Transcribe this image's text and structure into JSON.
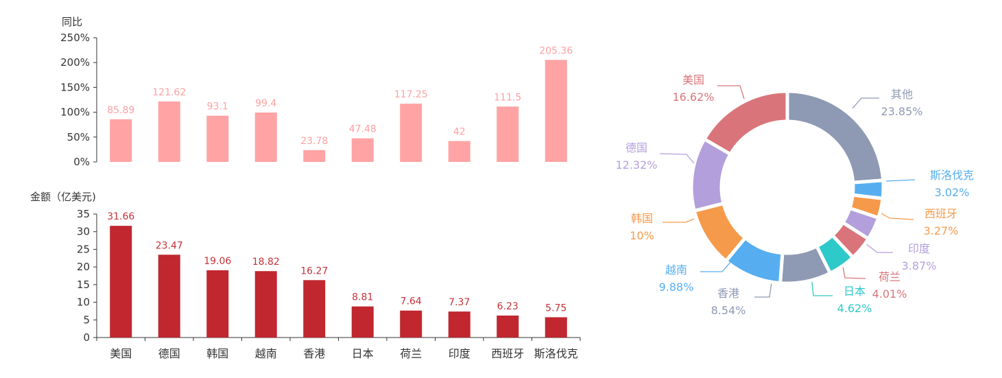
{
  "chart_data": [
    {
      "type": "bar",
      "ylabel": "同比",
      "categories": [
        "美国",
        "德国",
        "韩国",
        "越南",
        "香港",
        "日本",
        "荷兰",
        "印度",
        "西班牙",
        "斯洛伐克"
      ],
      "values": [
        85.89,
        121.62,
        93.1,
        99.4,
        23.78,
        47.48,
        117.25,
        42,
        111.5,
        205.36
      ],
      "value_labels": [
        "85.89",
        "121.62",
        "93.1",
        "99.4",
        "23.78",
        "47.48",
        "117.25",
        "42",
        "111.5",
        "205.36"
      ],
      "ylim": [
        0,
        250
      ],
      "yticks": [
        "0%",
        "50%",
        "100%",
        "150%",
        "200%",
        "250%"
      ],
      "bar_color": "#ffa3a4",
      "label_color": "#ff9fa1",
      "grid": false
    },
    {
      "type": "bar",
      "ylabel": "金额（亿美元)",
      "categories": [
        "美国",
        "德国",
        "韩国",
        "越南",
        "香港",
        "日本",
        "荷兰",
        "印度",
        "西班牙",
        "斯洛伐克"
      ],
      "values": [
        31.66,
        23.47,
        19.06,
        18.82,
        16.27,
        8.81,
        7.64,
        7.37,
        6.23,
        5.75
      ],
      "value_labels": [
        "31.66",
        "23.47",
        "19.06",
        "18.82",
        "16.27",
        "8.81",
        "7.64",
        "7.37",
        "6.23",
        "5.75"
      ],
      "ylim": [
        0,
        35
      ],
      "yticks": [
        "0",
        "5",
        "10",
        "15",
        "20",
        "25",
        "30",
        "35"
      ],
      "xticks": [
        "美国",
        "德国",
        "韩国",
        "越南",
        "香港",
        "日本",
        "荷兰",
        "印度",
        "西班牙",
        "斯洛伐克"
      ],
      "bar_color": "#c0272f",
      "label_color": "#c53139",
      "grid": false
    },
    {
      "type": "pie",
      "donut": true,
      "slices": [
        {
          "name": "其他",
          "value": 23.85,
          "label": "23.85%",
          "color": "#8e99b3"
        },
        {
          "name": "斯洛伐克",
          "value": 3.02,
          "label": "3.02%",
          "color": "#56aef0"
        },
        {
          "name": "西班牙",
          "value": 3.27,
          "label": "3.27%",
          "color": "#f59a4a"
        },
        {
          "name": "印度",
          "value": 3.87,
          "label": "3.87%",
          "color": "#b39fdc"
        },
        {
          "name": "荷兰",
          "value": 4.01,
          "label": "4.01%",
          "color": "#d9757a"
        },
        {
          "name": "日本",
          "value": 4.62,
          "label": "4.62%",
          "color": "#2ec9c9"
        },
        {
          "name": "香港",
          "value": 8.54,
          "label": "8.54%",
          "color": "#8e99b3"
        },
        {
          "name": "越南",
          "value": 9.88,
          "label": "9.88%",
          "color": "#56aef0"
        },
        {
          "name": "韩国",
          "value": 10,
          "label": "10%",
          "color": "#f59a4a"
        },
        {
          "name": "德国",
          "value": 12.32,
          "label": "12.32%",
          "color": "#b39fdc"
        },
        {
          "name": "美国",
          "value": 16.62,
          "label": "16.62%",
          "color": "#d9757a"
        }
      ]
    }
  ]
}
